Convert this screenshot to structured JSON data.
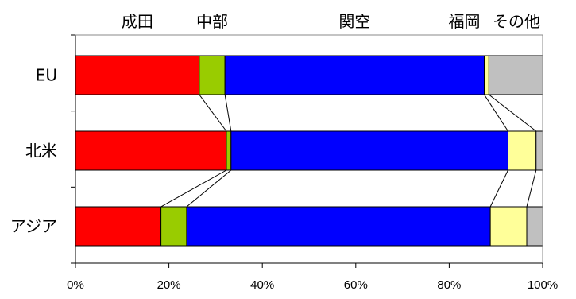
{
  "chart_data": {
    "type": "bar",
    "orientation": "horizontal",
    "stacked": true,
    "normalized": true,
    "categories": [
      "EU",
      "北米",
      "アジア"
    ],
    "series": [
      {
        "name": "成田",
        "color": "#ff0000",
        "values": [
          26.5,
          32.3,
          18.3
        ]
      },
      {
        "name": "中部",
        "color": "#99cc00",
        "values": [
          5.5,
          1.0,
          5.5
        ]
      },
      {
        "name": "関空",
        "color": "#0000ff",
        "values": [
          55.5,
          59.3,
          65.0
        ]
      },
      {
        "name": "福岡",
        "color": "#ffff99",
        "values": [
          1.0,
          6.0,
          7.8
        ]
      },
      {
        "name": "その他",
        "color": "#c0c0c0",
        "values": [
          11.5,
          1.4,
          3.4
        ]
      }
    ],
    "xlim": [
      0,
      100
    ],
    "xticks": [
      "0%",
      "20%",
      "40%",
      "60%",
      "80%",
      "100%"
    ],
    "legend": "top",
    "series_lines": true,
    "grid": false
  }
}
